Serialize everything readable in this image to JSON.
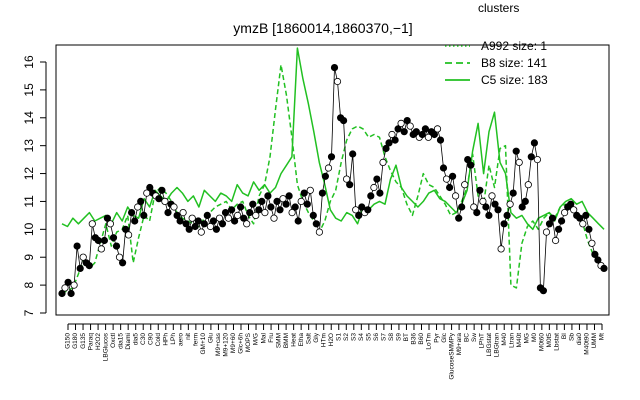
{
  "chart_data": {
    "type": "line",
    "title": "ymzB [1860014,1860370,−1]",
    "xlabel": "",
    "ylabel": "",
    "ylim": [
      7,
      16
    ],
    "yticks": [
      7,
      8,
      9,
      10,
      11,
      12,
      13,
      14,
      15,
      16
    ],
    "grid": false,
    "legend_placement": "top-right",
    "legend": {
      "title": "clusters",
      "color": "#22c022",
      "entries": [
        {
          "label": "A992 size: 1",
          "style": "dotted"
        },
        {
          "label": "B8 size: 141",
          "style": "dashed"
        },
        {
          "label": "C5 size: 183",
          "style": "solid"
        }
      ]
    },
    "x_tick_labels": [
      "G150",
      "G180",
      "G135",
      "Paraq",
      "H2O2",
      "LBGlucos",
      "Oxctl",
      "dia15",
      "Diami",
      "dia5",
      "C30",
      "C90",
      "Cold",
      "HPh",
      "LPh",
      "aero",
      "nit",
      "ferm",
      "GM+10",
      "Glu",
      "M9+cas",
      "M9+120",
      "M9+60",
      "Glc+6h",
      "MOPS",
      "M/G",
      "Mal",
      "Fru",
      "SMM",
      "BMM",
      "Heat",
      "Etha",
      "Salt",
      "Gly",
      "HTm",
      "H2O",
      "S1",
      "S2",
      "S3",
      "S4",
      "S5",
      "S6",
      "S7",
      "S8",
      "S9",
      "BT",
      "B36",
      "B60",
      "LoTm",
      "Pyr",
      "Glc",
      "GlucoseSMMPy",
      "M9+ara",
      "BC",
      "Sw",
      "LPhT",
      "LBGstat",
      "LBGtran",
      "M40",
      "Ltran",
      "M40t",
      "MG",
      "M0",
      "M0t60",
      "M0t5",
      "Lbstat",
      "BI",
      "Sb",
      "dia0",
      "M40t90",
      "UMM",
      "Mt"
    ],
    "series": [
      {
        "name": "B8",
        "style": "dashed",
        "color": "#22c022",
        "y": [
          7.7,
          7.8,
          7.9,
          8.4,
          8.9,
          8.6,
          8.8,
          9.5,
          10.2,
          9.4,
          9.9,
          10.0,
          10.5,
          8.8,
          9.7,
          10.5,
          10.3,
          11.3,
          11.5,
          11.3,
          11.0,
          10.6,
          10.4,
          10.3,
          10.2,
          10.1,
          10.4,
          10.6,
          10.8,
          10.9,
          11.0,
          10.7,
          10.9,
          11.0,
          10.5,
          10.2,
          11.2,
          11.6,
          12.6,
          14.3,
          15.9,
          14.8,
          13.3,
          11.6,
          11.0,
          10.6,
          10.3,
          9.9,
          10.3,
          11.0,
          11.4,
          12.4,
          13.2,
          13.6,
          13.7,
          13.6,
          13.3,
          13.4,
          13.3,
          12.6,
          12.1,
          11.7,
          11.5,
          10.9,
          10.5,
          11.2,
          12.0,
          11.6,
          11.5,
          11.2,
          10.9,
          10.5,
          10.6,
          11.0,
          11.5,
          12.7,
          11.2,
          10.9,
          12.3,
          11.5,
          12.9,
          13.0,
          8.0,
          7.9,
          9.5,
          10.1,
          10.3,
          10.0,
          10.4,
          10.6,
          10.4,
          10.8,
          10.9,
          10.8,
          10.5,
          10.3,
          9.6,
          9.1,
          8.9,
          8.6
        ]
      },
      {
        "name": "C5",
        "style": "solid",
        "color": "#22c022",
        "y": [
          10.2,
          10.1,
          10.4,
          10.2,
          10.4,
          10.6,
          10.3,
          10.4,
          10.5,
          10.2,
          10.6,
          10.3,
          10.8,
          10.5,
          10.4,
          11.1,
          10.8,
          11.4,
          11.2,
          11.0,
          11.3,
          11.5,
          11.3,
          11.0,
          11.2,
          10.8,
          11.4,
          11.2,
          11.0,
          11.3,
          11.2,
          11.0,
          11.6,
          11.3,
          11.2,
          11.7,
          11.4,
          11.6,
          11.3,
          11.5,
          12.0,
          12.3,
          12.6,
          16.5,
          15.4,
          14.5,
          13.5,
          12.4,
          11.6,
          10.7,
          10.4,
          10.3,
          10.6,
          10.5,
          10.2,
          10.8,
          10.7,
          10.9,
          11.0,
          10.9,
          11.8,
          12.3,
          11.5,
          11.2,
          11.0,
          10.8,
          11.0,
          11.3,
          11.4,
          11.1,
          11.0,
          10.8,
          10.6,
          10.9,
          11.4,
          12.8,
          13.8,
          12.0,
          13.5,
          14.2,
          12.4,
          12.0,
          10.6,
          10.4,
          10.5,
          10.2,
          10.0,
          10.4,
          10.5,
          10.6,
          10.3,
          10.8,
          11.0,
          11.1,
          10.9,
          11.0,
          10.6,
          10.4,
          10.2,
          10.0
        ]
      }
    ],
    "points": [
      {
        "x": 0,
        "y": 7.7
      },
      {
        "x": 1,
        "y": 7.9
      },
      {
        "x": 2,
        "y": 8.1
      },
      {
        "x": 3,
        "y": 7.7
      },
      {
        "x": 4,
        "y": 8.0
      },
      {
        "x": 5,
        "y": 9.4
      },
      {
        "x": 6,
        "y": 8.6
      },
      {
        "x": 7,
        "y": 9.0
      },
      {
        "x": 8,
        "y": 8.8
      },
      {
        "x": 9,
        "y": 8.7
      },
      {
        "x": 10,
        "y": 10.2
      },
      {
        "x": 11,
        "y": 9.7
      },
      {
        "x": 12,
        "y": 9.6
      },
      {
        "x": 13,
        "y": 9.3
      },
      {
        "x": 14,
        "y": 9.6
      },
      {
        "x": 15,
        "y": 10.4
      },
      {
        "x": 16,
        "y": 10.2
      },
      {
        "x": 17,
        "y": 9.7
      },
      {
        "x": 18,
        "y": 9.4
      },
      {
        "x": 19,
        "y": 9.0
      },
      {
        "x": 20,
        "y": 8.8
      },
      {
        "x": 21,
        "y": 10.0
      },
      {
        "x": 22,
        "y": 9.8
      },
      {
        "x": 23,
        "y": 10.6
      },
      {
        "x": 24,
        "y": 10.3
      },
      {
        "x": 25,
        "y": 10.8
      },
      {
        "x": 26,
        "y": 11.0
      },
      {
        "x": 27,
        "y": 10.5
      },
      {
        "x": 28,
        "y": 11.3
      },
      {
        "x": 29,
        "y": 11.5
      },
      {
        "x": 30,
        "y": 11.3
      },
      {
        "x": 31,
        "y": 11.2
      },
      {
        "x": 32,
        "y": 11.1
      },
      {
        "x": 33,
        "y": 11.4
      },
      {
        "x": 34,
        "y": 11.0
      },
      {
        "x": 35,
        "y": 10.6
      },
      {
        "x": 36,
        "y": 10.9
      },
      {
        "x": 37,
        "y": 10.8
      },
      {
        "x": 38,
        "y": 10.5
      },
      {
        "x": 39,
        "y": 10.3
      },
      {
        "x": 40,
        "y": 10.6
      },
      {
        "x": 41,
        "y": 10.2
      },
      {
        "x": 42,
        "y": 10.0
      },
      {
        "x": 43,
        "y": 10.4
      },
      {
        "x": 44,
        "y": 10.1
      },
      {
        "x": 45,
        "y": 10.3
      },
      {
        "x": 46,
        "y": 9.9
      },
      {
        "x": 47,
        "y": 10.2
      },
      {
        "x": 48,
        "y": 10.5
      },
      {
        "x": 49,
        "y": 10.1
      },
      {
        "x": 50,
        "y": 10.3
      },
      {
        "x": 51,
        "y": 10.0
      },
      {
        "x": 52,
        "y": 10.4
      },
      {
        "x": 53,
        "y": 10.2
      },
      {
        "x": 54,
        "y": 10.6
      },
      {
        "x": 55,
        "y": 10.4
      },
      {
        "x": 56,
        "y": 10.7
      },
      {
        "x": 57,
        "y": 10.3
      },
      {
        "x": 58,
        "y": 10.5
      },
      {
        "x": 59,
        "y": 10.8
      },
      {
        "x": 60,
        "y": 10.4
      },
      {
        "x": 61,
        "y": 10.2
      },
      {
        "x": 62,
        "y": 10.6
      },
      {
        "x": 63,
        "y": 10.9
      },
      {
        "x": 64,
        "y": 10.5
      },
      {
        "x": 65,
        "y": 10.7
      },
      {
        "x": 66,
        "y": 11.0
      },
      {
        "x": 67,
        "y": 10.6
      },
      {
        "x": 68,
        "y": 11.2
      },
      {
        "x": 69,
        "y": 10.8
      },
      {
        "x": 70,
        "y": 10.4
      },
      {
        "x": 71,
        "y": 11.0
      },
      {
        "x": 72,
        "y": 10.7
      },
      {
        "x": 73,
        "y": 11.1
      },
      {
        "x": 74,
        "y": 10.9
      },
      {
        "x": 75,
        "y": 11.2
      },
      {
        "x": 76,
        "y": 10.6
      },
      {
        "x": 77,
        "y": 10.8
      },
      {
        "x": 78,
        "y": 10.3
      },
      {
        "x": 79,
        "y": 11.0
      },
      {
        "x": 80,
        "y": 11.3
      },
      {
        "x": 81,
        "y": 10.9
      },
      {
        "x": 82,
        "y": 11.4
      },
      {
        "x": 83,
        "y": 10.5
      },
      {
        "x": 84,
        "y": 10.2
      },
      {
        "x": 85,
        "y": 9.9
      },
      {
        "x": 86,
        "y": 11.3
      },
      {
        "x": 87,
        "y": 11.9
      },
      {
        "x": 88,
        "y": 12.2
      },
      {
        "x": 89,
        "y": 12.6
      },
      {
        "x": 90,
        "y": 15.8
      },
      {
        "x": 91,
        "y": 15.3
      },
      {
        "x": 92,
        "y": 14.0
      },
      {
        "x": 93,
        "y": 13.9
      },
      {
        "x": 94,
        "y": 11.8
      },
      {
        "x": 95,
        "y": 11.6
      },
      {
        "x": 96,
        "y": 12.7
      },
      {
        "x": 97,
        "y": 10.7
      },
      {
        "x": 98,
        "y": 10.5
      },
      {
        "x": 99,
        "y": 10.8
      },
      {
        "x": 100,
        "y": 10.6
      },
      {
        "x": 101,
        "y": 10.7
      },
      {
        "x": 102,
        "y": 11.2
      },
      {
        "x": 103,
        "y": 11.5
      },
      {
        "x": 104,
        "y": 11.8
      },
      {
        "x": 105,
        "y": 11.3
      },
      {
        "x": 106,
        "y": 12.4
      },
      {
        "x": 107,
        "y": 12.9
      },
      {
        "x": 108,
        "y": 13.1
      },
      {
        "x": 109,
        "y": 13.4
      },
      {
        "x": 110,
        "y": 13.2
      },
      {
        "x": 111,
        "y": 13.6
      },
      {
        "x": 112,
        "y": 13.8
      },
      {
        "x": 113,
        "y": 13.5
      },
      {
        "x": 114,
        "y": 13.9
      },
      {
        "x": 115,
        "y": 13.7
      },
      {
        "x": 116,
        "y": 13.4
      },
      {
        "x": 117,
        "y": 13.5
      },
      {
        "x": 118,
        "y": 13.3
      },
      {
        "x": 119,
        "y": 13.4
      },
      {
        "x": 120,
        "y": 13.6
      },
      {
        "x": 121,
        "y": 13.3
      },
      {
        "x": 122,
        "y": 13.5
      },
      {
        "x": 123,
        "y": 13.4
      },
      {
        "x": 124,
        "y": 13.6
      },
      {
        "x": 125,
        "y": 13.2
      },
      {
        "x": 126,
        "y": 12.2
      },
      {
        "x": 127,
        "y": 11.8
      },
      {
        "x": 128,
        "y": 11.5
      },
      {
        "x": 129,
        "y": 11.9
      },
      {
        "x": 130,
        "y": 11.2
      },
      {
        "x": 131,
        "y": 10.4
      },
      {
        "x": 132,
        "y": 10.8
      },
      {
        "x": 133,
        "y": 11.6
      },
      {
        "x": 134,
        "y": 12.5
      },
      {
        "x": 135,
        "y": 12.3
      },
      {
        "x": 136,
        "y": 10.8
      },
      {
        "x": 137,
        "y": 10.6
      },
      {
        "x": 138,
        "y": 11.4
      },
      {
        "x": 139,
        "y": 11.0
      },
      {
        "x": 140,
        "y": 10.8
      },
      {
        "x": 141,
        "y": 10.5
      },
      {
        "x": 142,
        "y": 11.2
      },
      {
        "x": 143,
        "y": 10.9
      },
      {
        "x": 144,
        "y": 10.7
      },
      {
        "x": 145,
        "y": 9.3
      },
      {
        "x": 146,
        "y": 10.2
      },
      {
        "x": 147,
        "y": 10.5
      },
      {
        "x": 148,
        "y": 10.9
      },
      {
        "x": 149,
        "y": 11.3
      },
      {
        "x": 150,
        "y": 12.8
      },
      {
        "x": 151,
        "y": 12.4
      },
      {
        "x": 152,
        "y": 10.8
      },
      {
        "x": 153,
        "y": 11.0
      },
      {
        "x": 154,
        "y": 11.6
      },
      {
        "x": 155,
        "y": 12.6
      },
      {
        "x": 156,
        "y": 13.1
      },
      {
        "x": 157,
        "y": 12.5
      },
      {
        "x": 158,
        "y": 7.9
      },
      {
        "x": 159,
        "y": 7.8
      },
      {
        "x": 160,
        "y": 9.9
      },
      {
        "x": 161,
        "y": 10.2
      },
      {
        "x": 162,
        "y": 10.4
      },
      {
        "x": 163,
        "y": 9.6
      },
      {
        "x": 164,
        "y": 10.0
      },
      {
        "x": 165,
        "y": 10.3
      },
      {
        "x": 166,
        "y": 10.6
      },
      {
        "x": 167,
        "y": 10.8
      },
      {
        "x": 168,
        "y": 10.9
      },
      {
        "x": 169,
        "y": 10.7
      },
      {
        "x": 170,
        "y": 10.5
      },
      {
        "x": 171,
        "y": 10.4
      },
      {
        "x": 172,
        "y": 10.2
      },
      {
        "x": 173,
        "y": 10.5
      },
      {
        "x": 174,
        "y": 10.0
      },
      {
        "x": 175,
        "y": 9.5
      },
      {
        "x": 176,
        "y": 9.1
      },
      {
        "x": 177,
        "y": 8.9
      },
      {
        "x": 178,
        "y": 8.7
      },
      {
        "x": 179,
        "y": 8.6
      }
    ]
  }
}
